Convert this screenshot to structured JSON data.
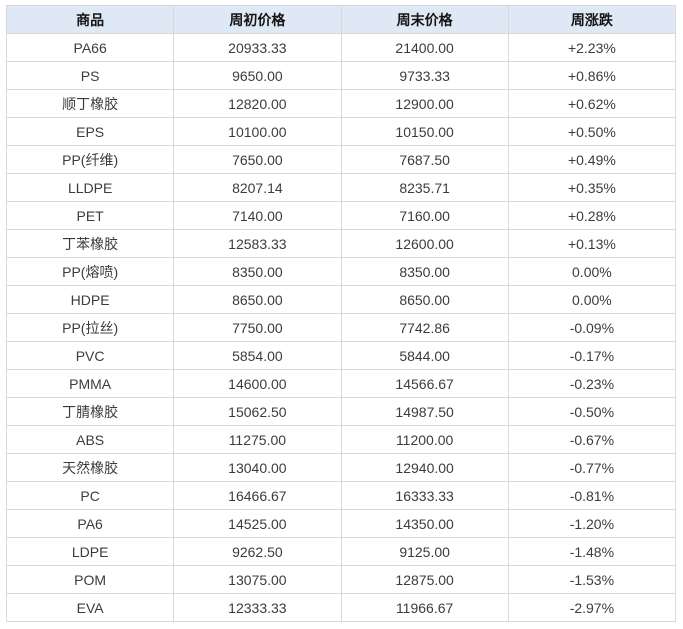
{
  "colors": {
    "header_bg": "#dfe8f5",
    "grid_border": "#d9d9d9",
    "outer_border": "#c9d6ea",
    "up_color": "#ff0000",
    "down_color": "#089e08",
    "flat_text": "#3c3c3c"
  },
  "chart_data": {
    "type": "table",
    "columns": [
      "商品",
      "周初价格",
      "周末价格",
      "周涨跌"
    ],
    "rows": [
      {
        "product": "PA66",
        "week_start_price": "20933.33",
        "week_end_price": "21400.00",
        "weekly_change": "+2.23%",
        "trend": "up"
      },
      {
        "product": "PS",
        "week_start_price": "9650.00",
        "week_end_price": "9733.33",
        "weekly_change": "+0.86%",
        "trend": "up"
      },
      {
        "product": "顺丁橡胶",
        "week_start_price": "12820.00",
        "week_end_price": "12900.00",
        "weekly_change": "+0.62%",
        "trend": "up"
      },
      {
        "product": "EPS",
        "week_start_price": "10100.00",
        "week_end_price": "10150.00",
        "weekly_change": "+0.50%",
        "trend": "up"
      },
      {
        "product": "PP(纤维)",
        "week_start_price": "7650.00",
        "week_end_price": "7687.50",
        "weekly_change": "+0.49%",
        "trend": "up"
      },
      {
        "product": "LLDPE",
        "week_start_price": "8207.14",
        "week_end_price": "8235.71",
        "weekly_change": "+0.35%",
        "trend": "up"
      },
      {
        "product": "PET",
        "week_start_price": "7140.00",
        "week_end_price": "7160.00",
        "weekly_change": "+0.28%",
        "trend": "up"
      },
      {
        "product": "丁苯橡胶",
        "week_start_price": "12583.33",
        "week_end_price": "12600.00",
        "weekly_change": "+0.13%",
        "trend": "up"
      },
      {
        "product": "PP(熔喷)",
        "week_start_price": "8350.00",
        "week_end_price": "8350.00",
        "weekly_change": "0.00%",
        "trend": "flat"
      },
      {
        "product": "HDPE",
        "week_start_price": "8650.00",
        "week_end_price": "8650.00",
        "weekly_change": "0.00%",
        "trend": "flat"
      },
      {
        "product": "PP(拉丝)",
        "week_start_price": "7750.00",
        "week_end_price": "7742.86",
        "weekly_change": "-0.09%",
        "trend": "down"
      },
      {
        "product": "PVC",
        "week_start_price": "5854.00",
        "week_end_price": "5844.00",
        "weekly_change": "-0.17%",
        "trend": "down"
      },
      {
        "product": "PMMA",
        "week_start_price": "14600.00",
        "week_end_price": "14566.67",
        "weekly_change": "-0.23%",
        "trend": "down"
      },
      {
        "product": "丁腈橡胶",
        "week_start_price": "15062.50",
        "week_end_price": "14987.50",
        "weekly_change": "-0.50%",
        "trend": "down"
      },
      {
        "product": "ABS",
        "week_start_price": "11275.00",
        "week_end_price": "11200.00",
        "weekly_change": "-0.67%",
        "trend": "down"
      },
      {
        "product": "天然橡胶",
        "week_start_price": "13040.00",
        "week_end_price": "12940.00",
        "weekly_change": "-0.77%",
        "trend": "down"
      },
      {
        "product": "PC",
        "week_start_price": "16466.67",
        "week_end_price": "16333.33",
        "weekly_change": "-0.81%",
        "trend": "down"
      },
      {
        "product": "PA6",
        "week_start_price": "14525.00",
        "week_end_price": "14350.00",
        "weekly_change": "-1.20%",
        "trend": "down"
      },
      {
        "product": "LDPE",
        "week_start_price": "9262.50",
        "week_end_price": "9125.00",
        "weekly_change": "-1.48%",
        "trend": "down"
      },
      {
        "product": "POM",
        "week_start_price": "13075.00",
        "week_end_price": "12875.00",
        "weekly_change": "-1.53%",
        "trend": "down"
      },
      {
        "product": "EVA",
        "week_start_price": "12333.33",
        "week_end_price": "11966.67",
        "weekly_change": "-2.97%",
        "trend": "down"
      }
    ]
  }
}
